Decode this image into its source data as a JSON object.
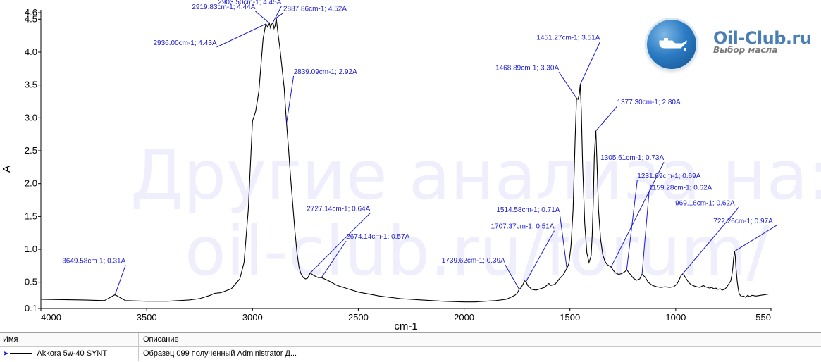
{
  "watermark": {
    "line1": "Другие анализа на:",
    "line2": "oil-club.ru/forum/"
  },
  "logo": {
    "title": "Oil-Club.ru",
    "subtitle": "Выбор масла",
    "icon": "oil-can-icon"
  },
  "chart_data": {
    "type": "line",
    "xlabel": "cm-1",
    "ylabel": "A",
    "xlim": [
      4000,
      550
    ],
    "ylim": [
      0.1,
      4.6
    ],
    "x_ticks": [
      "4000",
      "3500",
      "3000",
      "2500",
      "2000",
      "1500",
      "1000",
      "550"
    ],
    "y_ticks": [
      "0.1",
      "0.5",
      "1.0",
      "1.5",
      "2.0",
      "2.5",
      "3.0",
      "3.5",
      "4.0",
      "4.5",
      "4.6"
    ],
    "line_color": "#000000",
    "annotation_color": "#1a1ad6",
    "series": [
      {
        "name": "Akkora 5w-40 SYNT",
        "x": [
          4000,
          3800,
          3700,
          3649.58,
          3600,
          3500,
          3400,
          3300,
          3250,
          3200,
          3180,
          3150,
          3100,
          3060,
          3040,
          3020,
          3000,
          2985,
          2970,
          2960,
          2950,
          2940,
          2936,
          2928,
          2920,
          2915,
          2910,
          2903.5,
          2898,
          2893,
          2887.86,
          2880,
          2870,
          2860,
          2850,
          2845,
          2839.09,
          2830,
          2820,
          2810,
          2800,
          2790,
          2780,
          2770,
          2760,
          2750,
          2740,
          2727.14,
          2710,
          2690,
          2674.14,
          2640,
          2600,
          2550,
          2500,
          2400,
          2300,
          2200,
          2100,
          2000,
          1950,
          1900,
          1850,
          1800,
          1780,
          1760,
          1750,
          1739.62,
          1730,
          1720,
          1715,
          1707.37,
          1700,
          1690,
          1680,
          1660,
          1640,
          1620,
          1610,
          1600,
          1590,
          1570,
          1550,
          1530,
          1520,
          1514.58,
          1505,
          1495,
          1485,
          1475,
          1468.89,
          1462,
          1456,
          1451.27,
          1446,
          1440,
          1430,
          1420,
          1410,
          1400,
          1395,
          1390,
          1385,
          1380,
          1377.3,
          1372,
          1365,
          1355,
          1345,
          1335,
          1325,
          1315,
          1305.61,
          1295,
          1285,
          1270,
          1255,
          1240,
          1231.69,
          1220,
          1200,
          1185,
          1170,
          1159.28,
          1145,
          1130,
          1110,
          1090,
          1070,
          1050,
          1030,
          1010,
          995,
          985,
          975,
          969.16,
          960,
          950,
          940,
          930,
          920,
          910,
          900,
          885,
          870,
          860,
          850,
          840,
          830,
          820,
          810,
          800,
          790,
          780,
          770,
          760,
          750,
          740,
          735,
          730,
          727,
          724,
          722.26,
          719,
          715,
          710,
          705,
          700,
          690,
          680,
          670,
          660,
          650,
          640,
          620,
          600,
          580,
          560,
          550
        ],
        "y": [
          0.24,
          0.23,
          0.22,
          0.31,
          0.22,
          0.21,
          0.21,
          0.23,
          0.25,
          0.3,
          0.33,
          0.34,
          0.4,
          0.55,
          0.8,
          1.6,
          2.95,
          3.1,
          3.4,
          3.8,
          4.2,
          4.38,
          4.43,
          4.38,
          4.44,
          4.37,
          4.42,
          4.45,
          4.36,
          4.4,
          4.52,
          4.3,
          4.05,
          3.75,
          3.45,
          3.2,
          2.92,
          2.55,
          2.1,
          1.7,
          1.3,
          0.95,
          0.72,
          0.62,
          0.57,
          0.55,
          0.56,
          0.64,
          0.6,
          0.57,
          0.57,
          0.52,
          0.45,
          0.4,
          0.35,
          0.29,
          0.25,
          0.23,
          0.21,
          0.2,
          0.2,
          0.21,
          0.22,
          0.24,
          0.27,
          0.3,
          0.33,
          0.39,
          0.42,
          0.48,
          0.52,
          0.51,
          0.45,
          0.42,
          0.39,
          0.38,
          0.4,
          0.42,
          0.45,
          0.48,
          0.45,
          0.47,
          0.55,
          0.62,
          0.68,
          0.71,
          0.78,
          1.05,
          1.6,
          2.7,
          3.3,
          3.28,
          3.35,
          3.51,
          3.1,
          2.3,
          1.4,
          0.95,
          0.8,
          0.9,
          1.2,
          1.7,
          2.4,
          2.7,
          2.8,
          2.3,
          1.6,
          1.15,
          0.92,
          0.82,
          0.77,
          0.75,
          0.73,
          0.68,
          0.64,
          0.62,
          0.63,
          0.66,
          0.69,
          0.64,
          0.56,
          0.53,
          0.55,
          0.62,
          0.58,
          0.5,
          0.45,
          0.43,
          0.42,
          0.43,
          0.42,
          0.43,
          0.47,
          0.53,
          0.6,
          0.62,
          0.6,
          0.55,
          0.5,
          0.47,
          0.45,
          0.44,
          0.43,
          0.42,
          0.45,
          0.43,
          0.42,
          0.41,
          0.42,
          0.4,
          0.41,
          0.39,
          0.4,
          0.38,
          0.39,
          0.42,
          0.47,
          0.52,
          0.6,
          0.72,
          0.85,
          0.92,
          0.97,
          0.9,
          0.7,
          0.52,
          0.4,
          0.32,
          0.28,
          0.29,
          0.27,
          0.3,
          0.28,
          0.3,
          0.29,
          0.3,
          0.31,
          0.32,
          0.32
        ]
      }
    ],
    "annotations": [
      {
        "label": "3649.58cm-1; 0.31A",
        "x": 3649.58,
        "y": 0.31
      },
      {
        "label": "2936.00cm-1; 4.43A",
        "x": 2936.0,
        "y": 4.43
      },
      {
        "label": "2919.83cm-1; 4.44A",
        "x": 2919.83,
        "y": 4.44
      },
      {
        "label": "2903.50cm-1; 4.45A",
        "x": 2903.5,
        "y": 4.45
      },
      {
        "label": "2887.86cm-1; 4.52A",
        "x": 2887.86,
        "y": 4.52
      },
      {
        "label": "2839.09cm-1; 2.92A",
        "x": 2839.09,
        "y": 2.92
      },
      {
        "label": "2727.14cm-1; 0.64A",
        "x": 2727.14,
        "y": 0.64
      },
      {
        "label": "2674.14cm-1; 0.57A",
        "x": 2674.14,
        "y": 0.57
      },
      {
        "label": "1739.62cm-1; 0.39A",
        "x": 1739.62,
        "y": 0.39
      },
      {
        "label": "1707.37cm-1; 0.51A",
        "x": 1707.37,
        "y": 0.51
      },
      {
        "label": "1514.58cm-1; 0.71A",
        "x": 1514.58,
        "y": 0.71
      },
      {
        "label": "1468.89cm-1; 3.30A",
        "x": 1468.89,
        "y": 3.3
      },
      {
        "label": "1451.27cm-1; 3.51A",
        "x": 1451.27,
        "y": 3.51
      },
      {
        "label": "1377.30cm-1; 2.80A",
        "x": 1377.3,
        "y": 2.8
      },
      {
        "label": "1305.61cm-1; 0.73A",
        "x": 1305.61,
        "y": 0.73
      },
      {
        "label": "1231.69cm-1; 0.69A",
        "x": 1231.69,
        "y": 0.69
      },
      {
        "label": "1159.28cm-1; 0.62A",
        "x": 1159.28,
        "y": 0.62
      },
      {
        "label": "969.16cm-1; 0.62A",
        "x": 969.16,
        "y": 0.62
      },
      {
        "label": "722.26cm-1; 0.97A",
        "x": 722.26,
        "y": 0.97
      }
    ]
  },
  "legend_table": {
    "headers": [
      "Имя",
      "Описание"
    ],
    "rows": [
      {
        "name": "Akkora 5w-40 SYNT",
        "description": "Образец 099 полученный Administrator Д..."
      }
    ]
  }
}
